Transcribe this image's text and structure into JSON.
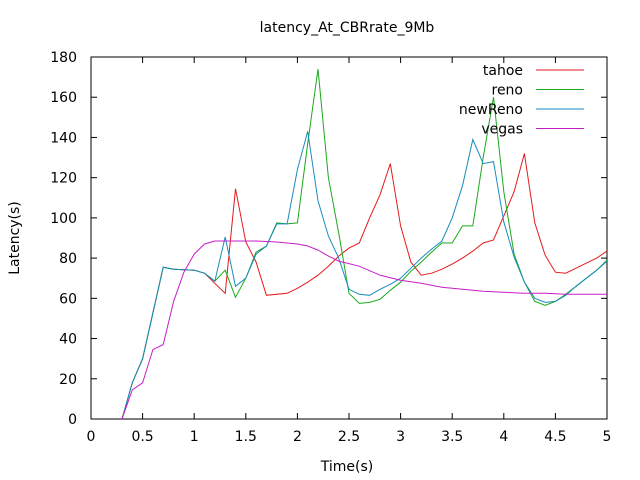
{
  "chart_data": {
    "type": "line",
    "title": "latency_At_CBRrate_9Mb",
    "xlabel": "Time(s)",
    "ylabel": "Latency(s)",
    "xlim": [
      0,
      5
    ],
    "ylim": [
      0,
      180
    ],
    "x_ticks": [
      0,
      0.5,
      1,
      1.5,
      2,
      2.5,
      3,
      3.5,
      4,
      4.5,
      5
    ],
    "x_tick_labels": [
      "0",
      "0.5",
      "1",
      "1.5",
      "2",
      "2.5",
      "3",
      "3.5",
      "4",
      "4.5",
      "5"
    ],
    "y_ticks": [
      0,
      20,
      40,
      60,
      80,
      100,
      120,
      140,
      160,
      180
    ],
    "y_tick_labels": [
      "0",
      "20",
      "40",
      "60",
      "80",
      "100",
      "120",
      "140",
      "160",
      "180"
    ],
    "grid": false,
    "legend_position": "top-right",
    "series": [
      {
        "name": "tahoe",
        "color": "#e41a1c",
        "points": [
          [
            0.3,
            0
          ],
          [
            0.4,
            18
          ],
          [
            0.5,
            30
          ],
          [
            0.7,
            75.5
          ],
          [
            0.8,
            74.5
          ],
          [
            1.0,
            74
          ],
          [
            1.1,
            72.5
          ],
          [
            1.2,
            67.5
          ],
          [
            1.3,
            62.5
          ],
          [
            1.4,
            114.5
          ],
          [
            1.5,
            88
          ],
          [
            1.6,
            78
          ],
          [
            1.7,
            61.5
          ],
          [
            1.9,
            62.5
          ],
          [
            2.0,
            65
          ],
          [
            2.1,
            68
          ],
          [
            2.2,
            71.5
          ],
          [
            2.3,
            76
          ],
          [
            2.4,
            81
          ],
          [
            2.5,
            85
          ],
          [
            2.6,
            87.5
          ],
          [
            2.7,
            100
          ],
          [
            2.8,
            111.5
          ],
          [
            2.9,
            127
          ],
          [
            3.0,
            96
          ],
          [
            3.1,
            78
          ],
          [
            3.2,
            71.5
          ],
          [
            3.3,
            72.5
          ],
          [
            3.4,
            74.5
          ],
          [
            3.5,
            77
          ],
          [
            3.6,
            80
          ],
          [
            3.7,
            83.5
          ],
          [
            3.8,
            87.5
          ],
          [
            3.9,
            89
          ],
          [
            4.0,
            101
          ],
          [
            4.1,
            113
          ],
          [
            4.2,
            132
          ],
          [
            4.3,
            97.5
          ],
          [
            4.4,
            81.5
          ],
          [
            4.5,
            73
          ],
          [
            4.6,
            72.5
          ],
          [
            4.7,
            75
          ],
          [
            4.8,
            77.5
          ],
          [
            4.9,
            80
          ],
          [
            5.0,
            83.5
          ]
        ]
      },
      {
        "name": "reno",
        "color": "#1ca91c",
        "points": [
          [
            0.3,
            0
          ],
          [
            0.4,
            18
          ],
          [
            0.5,
            30
          ],
          [
            0.7,
            75.5
          ],
          [
            0.8,
            74.5
          ],
          [
            1.0,
            74
          ],
          [
            1.1,
            72.5
          ],
          [
            1.2,
            68.5
          ],
          [
            1.3,
            74
          ],
          [
            1.4,
            60.5
          ],
          [
            1.5,
            70
          ],
          [
            1.6,
            83
          ],
          [
            1.7,
            86
          ],
          [
            1.8,
            97.5
          ],
          [
            1.9,
            97
          ],
          [
            2.0,
            97.5
          ],
          [
            2.1,
            137
          ],
          [
            2.2,
            174
          ],
          [
            2.3,
            120
          ],
          [
            2.4,
            92.5
          ],
          [
            2.5,
            62.5
          ],
          [
            2.6,
            57.5
          ],
          [
            2.7,
            58
          ],
          [
            2.8,
            59.5
          ],
          [
            2.9,
            64
          ],
          [
            3.0,
            68
          ],
          [
            3.1,
            73.5
          ],
          [
            3.2,
            78
          ],
          [
            3.3,
            83
          ],
          [
            3.4,
            87.5
          ],
          [
            3.5,
            87.5
          ],
          [
            3.6,
            96
          ],
          [
            3.7,
            96
          ],
          [
            3.8,
            130
          ],
          [
            3.9,
            160
          ],
          [
            4.0,
            113
          ],
          [
            4.1,
            82
          ],
          [
            4.2,
            68
          ],
          [
            4.3,
            58.5
          ],
          [
            4.4,
            56.5
          ],
          [
            4.5,
            58.5
          ],
          [
            4.6,
            62
          ],
          [
            4.7,
            66
          ],
          [
            4.8,
            70
          ],
          [
            4.9,
            74
          ],
          [
            5.0,
            79
          ]
        ]
      },
      {
        "name": "newReno",
        "color": "#1a8bbf",
        "points": [
          [
            0.3,
            0
          ],
          [
            0.4,
            18
          ],
          [
            0.5,
            30
          ],
          [
            0.7,
            75.5
          ],
          [
            0.8,
            74.5
          ],
          [
            1.0,
            74
          ],
          [
            1.1,
            72.5
          ],
          [
            1.2,
            68.5
          ],
          [
            1.3,
            90.5
          ],
          [
            1.4,
            66
          ],
          [
            1.5,
            70
          ],
          [
            1.6,
            82
          ],
          [
            1.7,
            86
          ],
          [
            1.8,
            97
          ],
          [
            1.9,
            97
          ],
          [
            2.0,
            124
          ],
          [
            2.1,
            143
          ],
          [
            2.2,
            108.5
          ],
          [
            2.3,
            91
          ],
          [
            2.4,
            80
          ],
          [
            2.5,
            64.5
          ],
          [
            2.6,
            62
          ],
          [
            2.7,
            61.5
          ],
          [
            2.8,
            64.5
          ],
          [
            2.9,
            67
          ],
          [
            3.0,
            70
          ],
          [
            3.1,
            75
          ],
          [
            3.2,
            80
          ],
          [
            3.3,
            84.5
          ],
          [
            3.4,
            88.5
          ],
          [
            3.5,
            100
          ],
          [
            3.6,
            116
          ],
          [
            3.7,
            139
          ],
          [
            3.8,
            127
          ],
          [
            3.9,
            128
          ],
          [
            4.0,
            98
          ],
          [
            4.1,
            80.5
          ],
          [
            4.2,
            68
          ],
          [
            4.3,
            60
          ],
          [
            4.4,
            58
          ],
          [
            4.5,
            58.5
          ],
          [
            4.6,
            61.5
          ],
          [
            4.7,
            66
          ],
          [
            4.8,
            70
          ],
          [
            4.9,
            74
          ],
          [
            5.0,
            78.5
          ]
        ]
      },
      {
        "name": "vegas",
        "color": "#c81ec8",
        "points": [
          [
            0.3,
            0
          ],
          [
            0.4,
            14.5
          ],
          [
            0.5,
            18
          ],
          [
            0.6,
            34.5
          ],
          [
            0.7,
            37
          ],
          [
            0.8,
            58.5
          ],
          [
            0.9,
            73
          ],
          [
            1.0,
            82
          ],
          [
            1.1,
            87
          ],
          [
            1.2,
            88.5
          ],
          [
            1.4,
            88.5
          ],
          [
            1.6,
            88.5
          ],
          [
            1.8,
            88
          ],
          [
            2.0,
            87
          ],
          [
            2.1,
            86
          ],
          [
            2.2,
            84
          ],
          [
            2.3,
            81
          ],
          [
            2.4,
            78.5
          ],
          [
            2.6,
            76
          ],
          [
            2.8,
            71.5
          ],
          [
            3.0,
            69
          ],
          [
            3.2,
            67.5
          ],
          [
            3.4,
            65.5
          ],
          [
            3.6,
            64.5
          ],
          [
            3.8,
            63.5
          ],
          [
            4.0,
            63
          ],
          [
            4.2,
            62.5
          ],
          [
            4.4,
            62.5
          ],
          [
            4.6,
            62
          ],
          [
            4.8,
            62
          ],
          [
            5.0,
            62
          ]
        ]
      }
    ]
  }
}
